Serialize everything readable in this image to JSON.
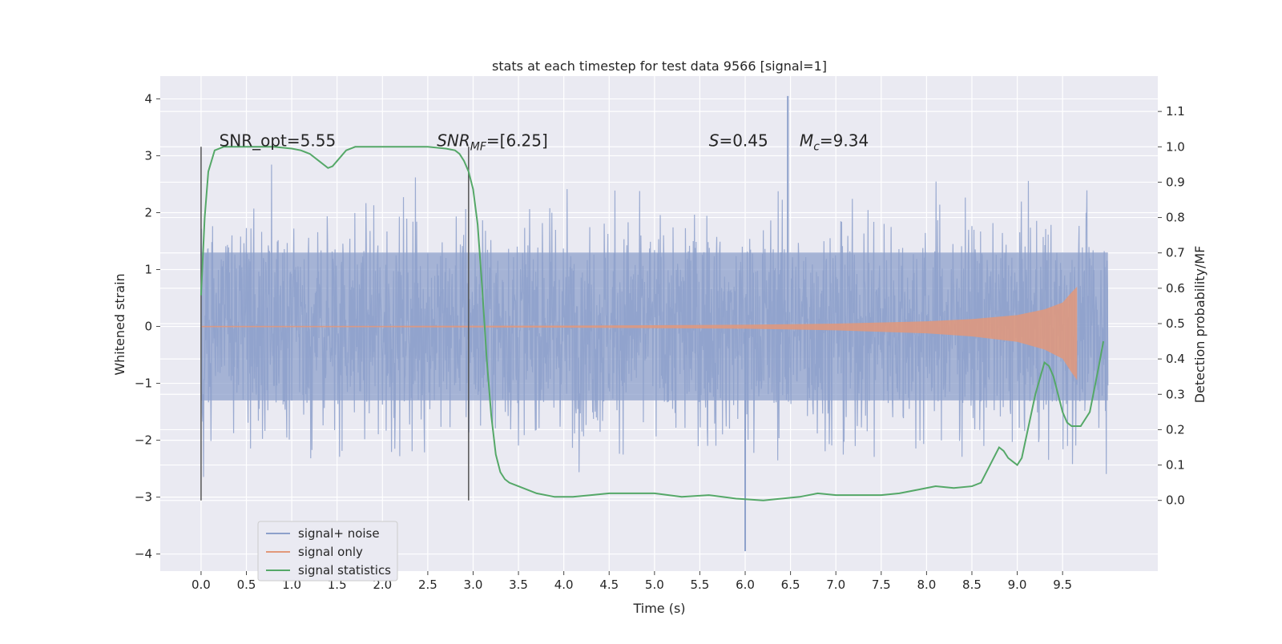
{
  "chart_data": {
    "type": "line",
    "title": "stats at each timestep for test data 9566 [signal=1]",
    "xlabel": "Time (s)",
    "ylabel_left": "Whitened strain",
    "ylabel_right": "Detection probability/MF",
    "xlim": [
      -0.45,
      10.55
    ],
    "ylim_left": [
      -4.3,
      4.4
    ],
    "ylim_right": [
      -0.2,
      1.2
    ],
    "x_ticks": [
      "0.0",
      "0.5",
      "1.0",
      "1.5",
      "2.0",
      "2.5",
      "3.0",
      "3.5",
      "4.0",
      "4.5",
      "5.0",
      "5.5",
      "6.0",
      "6.5",
      "7.0",
      "7.5",
      "8.0",
      "8.5",
      "9.0",
      "9.5"
    ],
    "y_ticks_left": [
      "4",
      "3",
      "2",
      "1",
      "0",
      "−1",
      "−2",
      "−3",
      "−4"
    ],
    "y_ticks_right": [
      "1.1",
      "1.0",
      "0.9",
      "0.8",
      "0.7",
      "0.6",
      "0.5",
      "0.4",
      "0.3",
      "0.2",
      "0.1",
      "0.0"
    ],
    "grid": true,
    "legend_placement": "lower-left",
    "colors": {
      "background": "#eaeaf2",
      "noise": "#8da0cb",
      "signal": "#e2987a",
      "stats": "#55a868",
      "vline": "#555555"
    },
    "series": [
      {
        "name": "signal+ noise",
        "axis": "left",
        "description_values": {
          "t_start": 0.0,
          "t_end": 10.0,
          "typical_range": [
            -2.0,
            2.0
          ],
          "peak_max": 4.05,
          "peak_min": -3.95
        }
      },
      {
        "name": "signal only",
        "axis": "left",
        "envelope": {
          "t": [
            0.0,
            2.0,
            4.0,
            6.0,
            7.0,
            8.0,
            8.5,
            9.0,
            9.3,
            9.5,
            9.6,
            9.66
          ],
          "amp": [
            0.01,
            0.01,
            0.015,
            0.03,
            0.05,
            0.09,
            0.13,
            0.2,
            0.3,
            0.42,
            0.6,
            0.7
          ]
        }
      },
      {
        "name": "signal statistics",
        "axis": "right",
        "x": [
          0.0,
          0.04,
          0.08,
          0.15,
          0.25,
          0.5,
          0.8,
          1.0,
          1.1,
          1.2,
          1.3,
          1.4,
          1.45,
          1.5,
          1.6,
          1.7,
          1.8,
          2.0,
          2.5,
          2.7,
          2.8,
          2.85,
          2.9,
          2.95,
          3.0,
          3.05,
          3.1,
          3.15,
          3.2,
          3.25,
          3.3,
          3.35,
          3.4,
          3.5,
          3.7,
          3.9,
          4.1,
          4.3,
          4.5,
          4.7,
          5.0,
          5.3,
          5.6,
          5.9,
          6.2,
          6.4,
          6.6,
          6.8,
          7.0,
          7.2,
          7.5,
          7.7,
          7.9,
          8.1,
          8.3,
          8.5,
          8.6,
          8.7,
          8.8,
          8.85,
          8.9,
          8.95,
          9.0,
          9.05,
          9.1,
          9.2,
          9.3,
          9.35,
          9.4,
          9.5,
          9.55,
          9.6,
          9.7,
          9.8,
          9.9,
          9.95
        ],
        "y": [
          0.58,
          0.8,
          0.93,
          0.99,
          1.0,
          1.0,
          1.0,
          0.995,
          0.99,
          0.98,
          0.96,
          0.94,
          0.945,
          0.96,
          0.99,
          1.0,
          1.0,
          1.0,
          1.0,
          0.995,
          0.99,
          0.98,
          0.96,
          0.93,
          0.88,
          0.78,
          0.6,
          0.4,
          0.24,
          0.13,
          0.08,
          0.06,
          0.05,
          0.04,
          0.02,
          0.01,
          0.01,
          0.015,
          0.02,
          0.02,
          0.02,
          0.01,
          0.015,
          0.005,
          0.0,
          0.005,
          0.01,
          0.02,
          0.015,
          0.015,
          0.015,
          0.02,
          0.03,
          0.04,
          0.035,
          0.04,
          0.05,
          0.1,
          0.15,
          0.14,
          0.12,
          0.11,
          0.1,
          0.12,
          0.18,
          0.3,
          0.39,
          0.38,
          0.35,
          0.25,
          0.22,
          0.21,
          0.21,
          0.25,
          0.38,
          0.45
        ]
      }
    ],
    "vlines": [
      0.0,
      2.95
    ],
    "annotations": [
      {
        "text_main": "SNR_opt=5.55",
        "x": 0.2,
        "y_right": 1.0
      },
      {
        "text_main": "SNR",
        "sub": "MF",
        "tail": "=[6.25]",
        "italic_main": true,
        "x": 2.6,
        "y_right": 1.0
      },
      {
        "text_main": "S",
        "tail": "=0.45",
        "italic_main": true,
        "x": 5.6,
        "y_right": 1.0
      },
      {
        "text_main": "M",
        "sub": "c",
        "tail": "=9.34",
        "italic_main": true,
        "x": 6.6,
        "y_right": 1.0
      }
    ]
  }
}
